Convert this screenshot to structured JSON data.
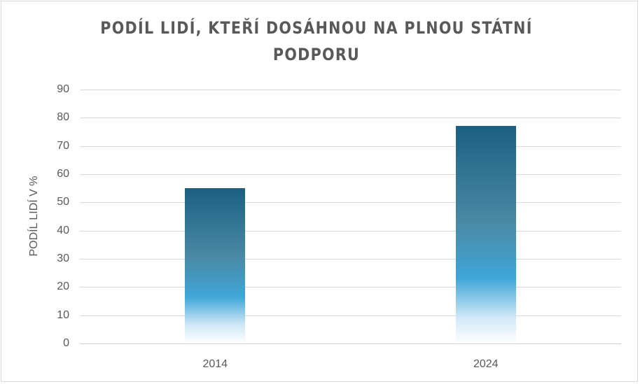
{
  "chart_data": {
    "type": "bar",
    "title": "PODÍL LIDÍ, KTEŘÍ DOSÁHNOU NA PLNOU STÁTNÍ PODPORU",
    "title_lines": [
      "PODÍL LIDÍ, KTEŘÍ DOSÁHNOU NA PLNOU STÁTNÍ",
      "PODPORU"
    ],
    "categories": [
      "2014",
      "2024"
    ],
    "values": [
      55,
      77
    ],
    "xlabel": "",
    "ylabel": "PODÍL LIDÍ V %",
    "ylim": [
      0,
      90
    ],
    "yticks": [
      "0",
      "10",
      "20",
      "30",
      "40",
      "50",
      "60",
      "70",
      "80",
      "90"
    ],
    "grid": true,
    "legend": null,
    "bar_colors": {
      "top": "#1c5f80",
      "mid": "#3fa6d8",
      "bottom": "#ffffff"
    }
  }
}
